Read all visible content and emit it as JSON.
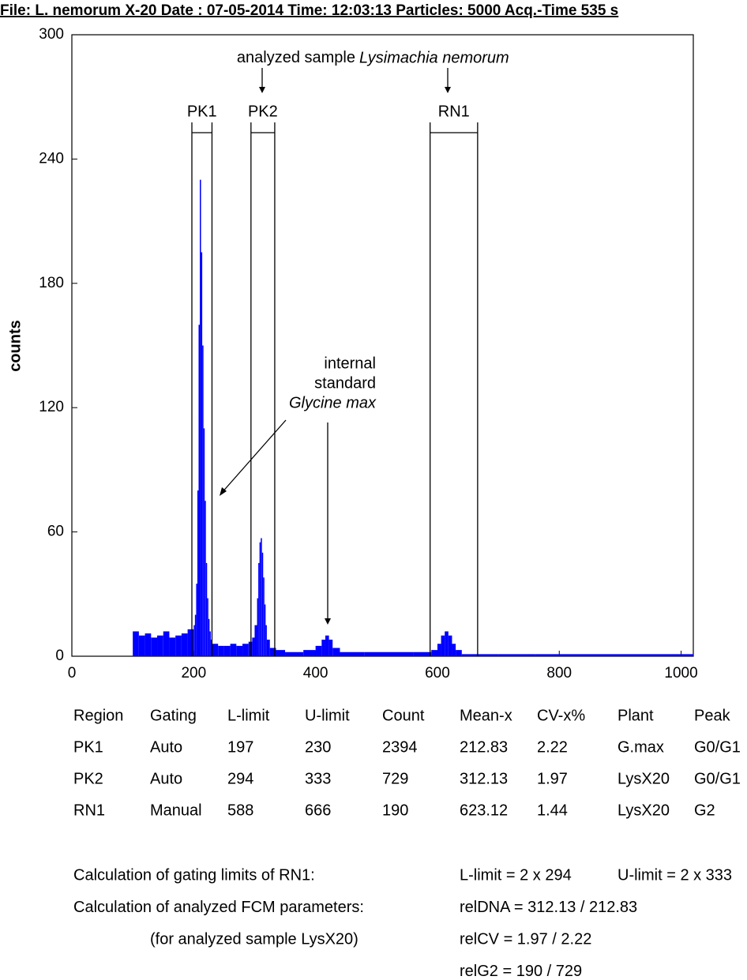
{
  "header": "File: L. nemorum X-20  Date : 07-05-2014 Time: 12:03:13 Particles: 5000 Acq.-Time 535 s",
  "chart_data": {
    "type": "histogram",
    "ylabel": "counts",
    "color": "#0000ff",
    "bins": [
      100,
      110,
      120,
      130,
      140,
      150,
      160,
      170,
      180,
      190,
      200,
      202,
      204,
      206,
      208,
      210,
      212,
      214,
      216,
      218,
      220,
      222,
      224,
      226,
      228,
      230,
      240,
      250,
      260,
      270,
      280,
      290,
      296,
      300,
      304,
      306,
      308,
      310,
      312,
      314,
      316,
      318,
      320,
      325,
      335,
      350,
      380,
      400,
      410,
      416,
      422,
      428,
      440,
      480,
      560,
      590,
      600,
      606,
      612,
      618,
      624,
      630,
      640,
      700,
      760,
      1020
    ],
    "counts": [
      12,
      10,
      11,
      9,
      10,
      12,
      9,
      10,
      11,
      13,
      15,
      20,
      35,
      80,
      160,
      230,
      195,
      150,
      110,
      75,
      45,
      28,
      18,
      12,
      8,
      6,
      5,
      5,
      6,
      5,
      6,
      7,
      9,
      15,
      28,
      45,
      55,
      57,
      50,
      38,
      25,
      15,
      8,
      4,
      3,
      2,
      3,
      5,
      8,
      10,
      8,
      4,
      2,
      2,
      2,
      3,
      6,
      10,
      12,
      10,
      6,
      3,
      1,
      1,
      1
    ],
    "xlim": [
      0,
      1020
    ],
    "ylim": [
      0,
      300
    ],
    "xticks": [
      0,
      200,
      400,
      600,
      800,
      1000
    ],
    "yticks": [
      0,
      60,
      120,
      180,
      240,
      300
    ],
    "annotations": {
      "sample": "analyzed sample",
      "sample_name": "Lysimachia nemorum",
      "standard_1": "internal",
      "standard_2": "standard",
      "standard_name": "Glycine max"
    }
  },
  "table": {
    "header": [
      "Region",
      "Gating",
      "L-limit",
      "U-limit",
      "Count",
      "Mean-x",
      "CV-x%",
      "Plant",
      "Peak"
    ],
    "rows": [
      [
        "PK1",
        "Auto",
        197,
        230,
        2394,
        212.83,
        2.22,
        "G.max",
        "G0/G1"
      ],
      [
        "PK2",
        "Auto",
        294,
        333,
        729,
        312.13,
        1.97,
        "LysX20",
        "G0/G1"
      ],
      [
        "RN1",
        "Manual",
        588,
        666,
        190,
        623.12,
        1.44,
        "LysX20",
        "G2"
      ]
    ]
  },
  "calculations": [
    {
      "label": "Calculation of gating limits of RN1:",
      "formulas": [
        "L-limit = 2 x 294",
        "U-limit = 2 x 333"
      ]
    },
    {
      "label": "Calculation of analyzed FCM parameters:",
      "formulas": [
        "relDNA = 312.13 / 212.83"
      ]
    },
    {
      "label": "(for analyzed sample LysX20)",
      "formulas": [
        "relCV = 1.97 / 2.22"
      ]
    },
    {
      "formulas": [
        "relG2 = 190 / 729"
      ]
    }
  ]
}
